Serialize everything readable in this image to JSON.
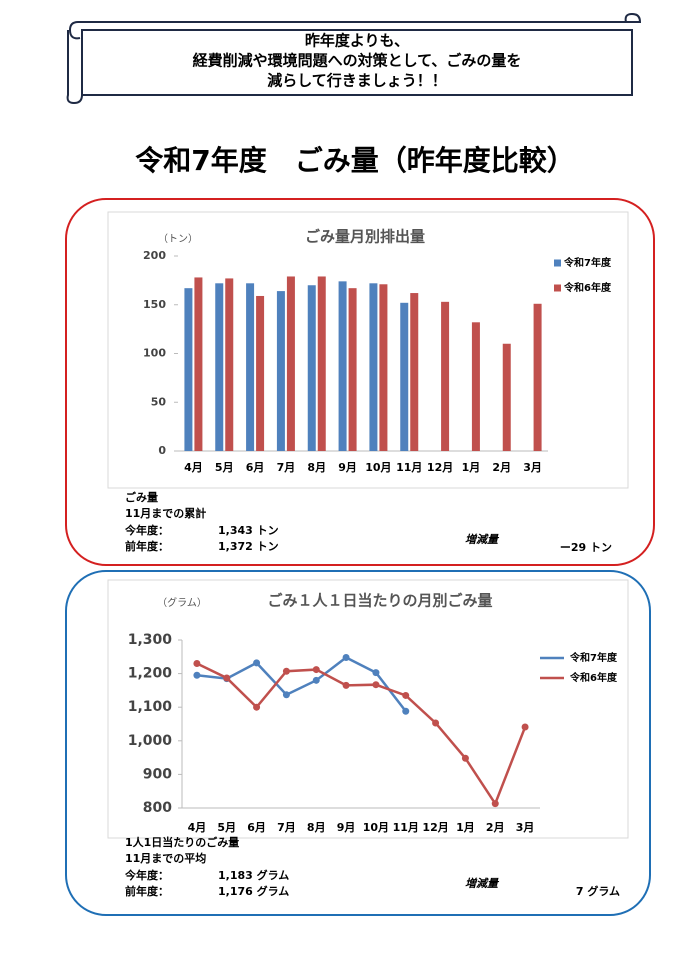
{
  "header": {
    "lines": [
      "昨年度よりも、",
      "経費削減や環境問題への対策として、ごみの量を",
      "減らして行きましょう！！"
    ]
  },
  "title": "令和7年度　ごみ量（昨年度比較）",
  "chart_data": [
    {
      "type": "bar",
      "title": "ごみ量月別排出量",
      "unit": "（トン）",
      "categories": [
        "4月",
        "5月",
        "6月",
        "7月",
        "8月",
        "9月",
        "10月",
        "11月",
        "12月",
        "1月",
        "2月",
        "3月"
      ],
      "series": [
        {
          "name": "令和7年度",
          "color": "#4f81bd",
          "values": [
            167,
            172,
            172,
            164,
            170,
            174,
            172,
            152,
            null,
            null,
            null,
            null
          ]
        },
        {
          "name": "令和6年度",
          "color": "#c0504d",
          "values": [
            178,
            177,
            159,
            179,
            179,
            167,
            171,
            162,
            153,
            132,
            110,
            151
          ]
        }
      ],
      "ylim": [
        0,
        200
      ],
      "yticks": [
        0,
        50,
        100,
        150,
        200
      ],
      "grid": false,
      "legend": "right"
    },
    {
      "type": "line",
      "title": "ごみ１人１日当たりの月別ごみ量",
      "unit": "（グラム）",
      "categories": [
        "4月",
        "5月",
        "6月",
        "7月",
        "8月",
        "9月",
        "10月",
        "11月",
        "12月",
        "1月",
        "2月",
        "3月"
      ],
      "series": [
        {
          "name": "令和7年度",
          "color": "#4f81bd",
          "values": [
            1195,
            1185,
            1232,
            1137,
            1180,
            1248,
            1203,
            1088,
            null,
            null,
            null,
            null
          ]
        },
        {
          "name": "令和6年度",
          "color": "#c0504d",
          "values": [
            1230,
            1187,
            1100,
            1207,
            1212,
            1165,
            1167,
            1135,
            1053,
            948,
            813,
            1041
          ]
        }
      ],
      "ylim": [
        800,
        1300
      ],
      "yticks": [
        800,
        900,
        {
          "value": 1000,
          "label": "1,000"
        },
        {
          "value": 1100,
          "label": "1,100"
        },
        {
          "value": 1200,
          "label": "1,200"
        },
        {
          "value": 1300,
          "label": "1,300"
        }
      ],
      "grid": false,
      "legend": "right"
    }
  ],
  "summaries": [
    {
      "heading": "ごみ量",
      "period": "11月までの累計",
      "current_label": "今年度：",
      "current_value": "1,343 トン",
      "previous_label": "前年度：",
      "previous_value": "1,372 トン",
      "diff_label": "増減量",
      "diff_value": "ー29 トン"
    },
    {
      "heading": "1人1日当たりのごみ量",
      "period": "11月までの平均",
      "current_label": "今年度：",
      "current_value": "1,183 グラム",
      "previous_label": "前年度：",
      "previous_value": "1,176 グラム",
      "diff_label": "増減量",
      "diff_value": "7 グラム"
    }
  ]
}
